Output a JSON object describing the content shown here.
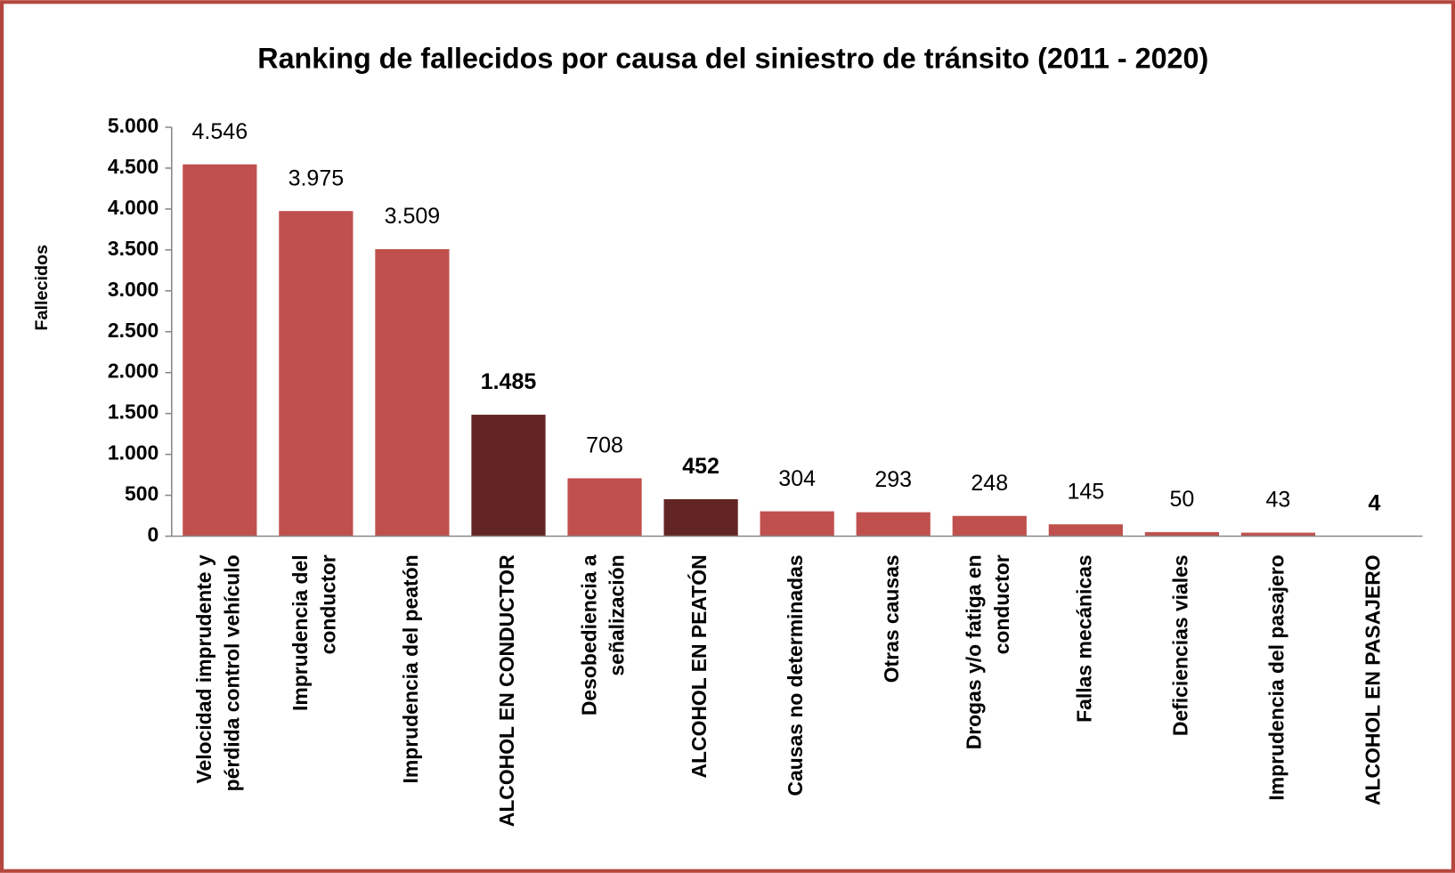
{
  "chart_data": {
    "type": "bar",
    "title": "Ranking de fallecidos por causa del siniestro de tránsito (2011 - 2020)",
    "y_label": "Fallecidos",
    "categories": [
      "Velocidad imprudente y\npérdida control vehículo",
      "Imprudencia del\nconductor",
      "Imprudencia del peatón",
      "ALCOHOL EN CONDUCTOR",
      "Desobediencia a\nseñalización",
      "ALCOHOL EN PEATÓN",
      "Causas no determinadas",
      "Otras causas",
      "Drogas y/o fatiga en\nconductor",
      "Fallas mecánicas",
      "Deficiencias viales",
      "Imprudencia del pasajero",
      "ALCOHOL EN PASAJERO"
    ],
    "values": [
      4546,
      3975,
      3509,
      1485,
      708,
      452,
      304,
      293,
      248,
      145,
      50,
      43,
      4
    ],
    "value_labels": [
      "4.546",
      "3.975",
      "3.509",
      "1.485",
      "708",
      "452",
      "304",
      "293",
      "248",
      "145",
      "50",
      "43",
      "4"
    ],
    "color": "#c0504d",
    "colors": [
      "#c0504d",
      "#c0504d",
      "#c0504d",
      "#632523",
      "#c0504d",
      "#632523",
      "#c0504d",
      "#c0504d",
      "#c0504d",
      "#c0504d",
      "#c0504d",
      "#c0504d",
      "#632523"
    ],
    "ylim": [
      0,
      5000
    ],
    "yticks": [
      0,
      500,
      {
        "value": 1000,
        "label": "1.000"
      },
      {
        "value": 1500,
        "label": "1.500"
      },
      {
        "value": 2000,
        "label": "2.000"
      },
      {
        "value": 2500,
        "label": "2.500"
      },
      {
        "value": 3000,
        "label": "3.000"
      },
      {
        "value": 3500,
        "label": "3.500"
      },
      {
        "value": 4000,
        "label": "4.000"
      },
      {
        "value": 4500,
        "label": "4.500"
      },
      {
        "value": 5000,
        "label": "5.000"
      }
    ],
    "grid": false
  }
}
